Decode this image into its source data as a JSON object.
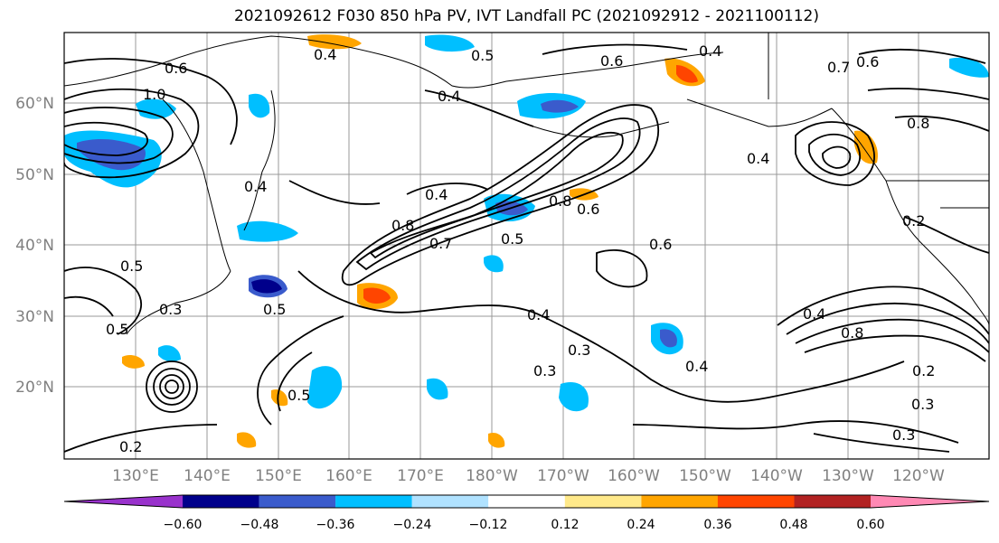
{
  "title": "2021092612 F030 850 hPa PV, IVT Landfall PC (2021092912 - 2021100112)",
  "map": {
    "lon_labels": [
      "130°E",
      "140°E",
      "150°E",
      "160°E",
      "170°E",
      "180°W",
      "170°W",
      "160°W",
      "150°W",
      "140°W",
      "130°W",
      "120°W"
    ],
    "lat_labels": [
      "60°N",
      "50°N",
      "40°N",
      "30°N",
      "20°N"
    ],
    "contour_labels": [
      "0.6",
      "1.0",
      "0.4",
      "0.5",
      "0.4",
      "0.6",
      "0.4",
      "0.7",
      "0.6",
      "0.4",
      "0.8",
      "0.4",
      "0.8",
      "0.7",
      "0.6",
      "0.5",
      "0.6",
      "0.8",
      "0.4",
      "0.2",
      "0.5",
      "0.3",
      "0.5",
      "0.5",
      "0.4",
      "0.3",
      "0.3",
      "0.4",
      "0.5",
      "0.8",
      "0.4",
      "0.3",
      "0.2",
      "0.2",
      "0.3"
    ]
  },
  "colorbar": {
    "ticks": [
      "−0.60",
      "−0.48",
      "−0.36",
      "−0.24",
      "−0.12",
      "0.12",
      "0.24",
      "0.36",
      "0.48",
      "0.60"
    ],
    "colors": [
      "#9932cc",
      "#00008b",
      "#3a5bcc",
      "#00bfff",
      "#b0e2ff",
      "#ffffff",
      "#ffe98a",
      "#ffa500",
      "#ff4500",
      "#b22222",
      "#ff89b4"
    ]
  }
}
